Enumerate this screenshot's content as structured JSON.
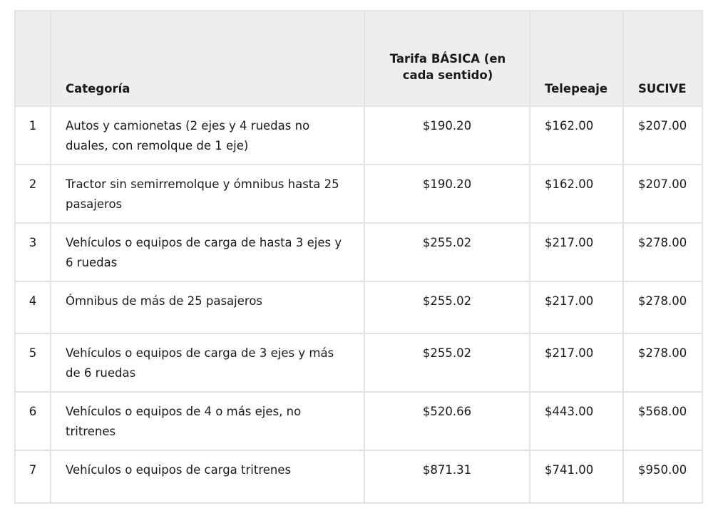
{
  "table": {
    "headers": [
      "",
      "Categoría",
      "Tarifa BÁSICA (en cada sentido)",
      "Telepeaje",
      "SUCIVE"
    ],
    "rows": [
      {
        "num": "1",
        "categoria": "Autos y camionetas (2 ejes y 4 ruedas no duales, con remolque de 1 eje)",
        "tarifa": "$190.20",
        "telepeaje": "$162.00",
        "sucive": "$207.00"
      },
      {
        "num": "2",
        "categoria": "Tractor sin semirremolque y ómnibus hasta 25 pasajeros",
        "tarifa": "$190.20",
        "telepeaje": "$162.00",
        "sucive": "$207.00"
      },
      {
        "num": "3",
        "categoria": "Vehículos o equipos de carga de hasta 3 ejes y 6 ruedas",
        "tarifa": "$255.02",
        "telepeaje": "$217.00",
        "sucive": "$278.00"
      },
      {
        "num": "4",
        "categoria": "Ómnibus de más de 25 pasajeros",
        "tarifa": "$255.02",
        "telepeaje": "$217.00",
        "sucive": "$278.00"
      },
      {
        "num": "5",
        "categoria": "Vehículos o equipos de carga de 3 ejes y más de 6 ruedas",
        "tarifa": "$255.02",
        "telepeaje": "$217.00",
        "sucive": "$278.00"
      },
      {
        "num": "6",
        "categoria": "Vehículos o equipos de 4 o más ejes, no tritrenes",
        "tarifa": "$520.66",
        "telepeaje": "$443.00",
        "sucive": "$568.00"
      },
      {
        "num": "7",
        "categoria": "Vehículos o equipos de carga tritrenes",
        "tarifa": "$871.31",
        "telepeaje": "$741.00",
        "sucive": "$950.00"
      }
    ]
  }
}
